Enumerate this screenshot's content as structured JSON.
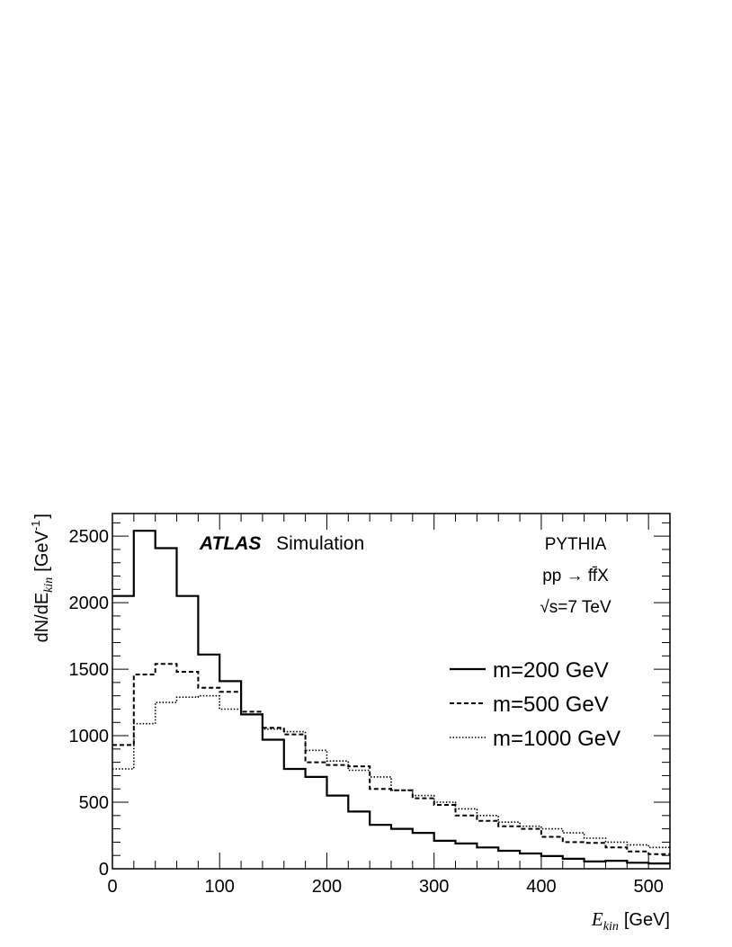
{
  "chart_data": {
    "type": "line",
    "style": "step-histogram",
    "experiment": "ATLAS",
    "experiment_tag": "Simulation",
    "annotations": [
      "PYTHIA",
      "pp → ff̄X",
      "√s=7 TeV"
    ],
    "xlabel": "E",
    "xlabel_sub": "kin",
    "xlabel_unit": "[GeV]",
    "ylabel": "dN/dE",
    "ylabel_sub": "kin",
    "ylabel_unit_prefix": "[GeV",
    "ylabel_unit_exp": "-1",
    "ylabel_unit_suffix": "]",
    "xlim": [
      0,
      520
    ],
    "ylim": [
      0,
      2670
    ],
    "x_ticks": [
      0,
      100,
      200,
      300,
      400,
      500
    ],
    "x_tick_labels": [
      "0",
      "100",
      "200",
      "300",
      "400",
      "500"
    ],
    "y_ticks": [
      0,
      500,
      1000,
      1500,
      2000,
      2500
    ],
    "y_tick_labels": [
      "0",
      "500",
      "1000",
      "1500",
      "2000",
      "2500"
    ],
    "bin_edges": [
      0,
      20,
      40,
      60,
      80,
      100,
      120,
      140,
      160,
      180,
      200,
      220,
      240,
      260,
      280,
      300,
      320,
      340,
      360,
      380,
      400,
      420,
      440,
      460,
      480,
      500,
      520
    ],
    "grid": false,
    "legend_position": "right",
    "series": [
      {
        "name": "m=200 GeV",
        "style": "solid",
        "values": [
          2050,
          2540,
          2410,
          2050,
          1610,
          1410,
          1160,
          970,
          750,
          690,
          550,
          430,
          330,
          300,
          270,
          210,
          190,
          160,
          135,
          115,
          95,
          75,
          55,
          60,
          45,
          40
        ]
      },
      {
        "name": "m=500 GeV",
        "style": "dashed",
        "values": [
          930,
          1460,
          1540,
          1480,
          1360,
          1330,
          1180,
          1060,
          1010,
          800,
          780,
          770,
          600,
          590,
          530,
          480,
          400,
          360,
          320,
          300,
          240,
          200,
          195,
          160,
          130,
          110
        ]
      },
      {
        "name": "m=1000 GeV",
        "style": "dotted",
        "values": [
          750,
          1090,
          1250,
          1290,
          1300,
          1200,
          1160,
          1050,
          1030,
          890,
          810,
          740,
          690,
          590,
          550,
          500,
          450,
          400,
          350,
          320,
          300,
          270,
          230,
          200,
          180,
          160
        ]
      }
    ]
  }
}
